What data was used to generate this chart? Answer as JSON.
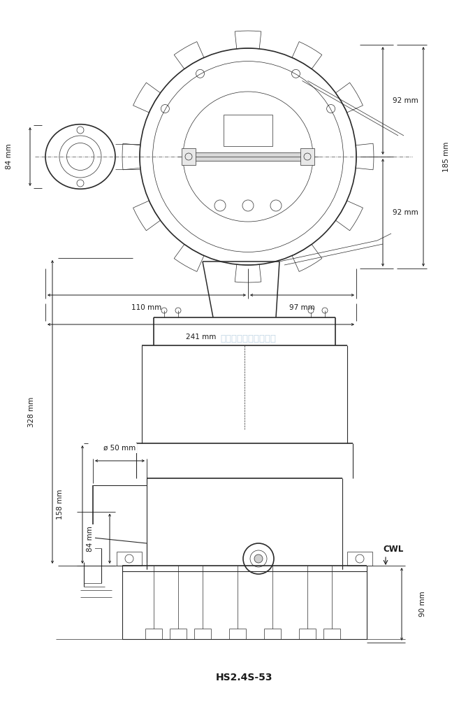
{
  "bg_color": "#ffffff",
  "line_color": "#2a2a2a",
  "dim_color": "#1a1a1a",
  "watermark_color": "#b8cfe0",
  "watermark_text": "三寶五金機械有限公司",
  "model_text": "HS2.4S-53",
  "dims_top": {
    "dim_84_label": "84 mm",
    "dim_92_top_label": "92 mm",
    "dim_92_bot_label": "92 mm",
    "dim_185_label": "185 mm",
    "dim_110_label": "110 mm",
    "dim_97_label": "97 mm",
    "dim_241_label": "241 mm"
  },
  "dims_bottom": {
    "dim_50_label": "ø 50 mm",
    "dim_328_label": "328 mm",
    "dim_158_label": "158 mm",
    "dim_84_label": "84 mm",
    "dim_90_label": "90 mm",
    "cwl_label": "CWL"
  }
}
